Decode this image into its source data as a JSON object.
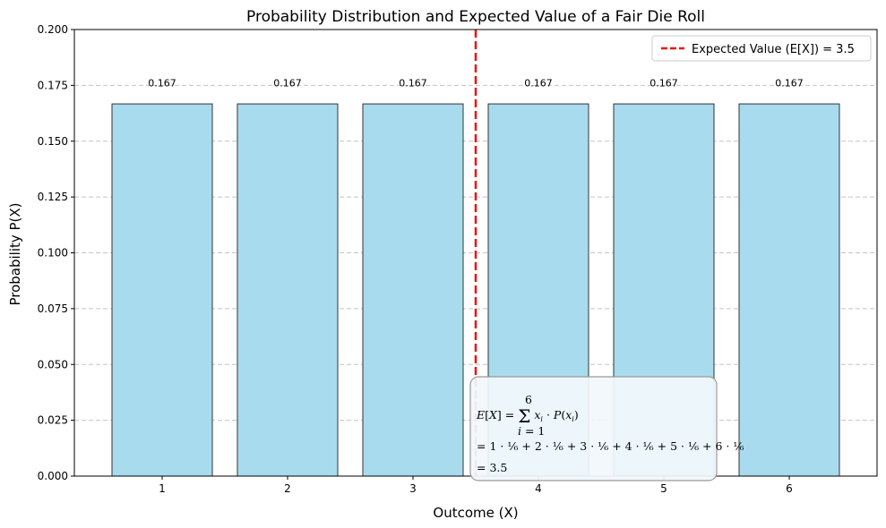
{
  "chart_data": {
    "type": "bar",
    "title": "Probability Distribution and Expected Value of a Fair Die Roll",
    "xlabel": "Outcome (X)",
    "ylabel": "Probability P(X)",
    "categories": [
      "1",
      "2",
      "3",
      "4",
      "5",
      "6"
    ],
    "values": [
      0.1667,
      0.1667,
      0.1667,
      0.1667,
      0.1667,
      0.1667
    ],
    "value_labels": [
      "0.167",
      "0.167",
      "0.167",
      "0.167",
      "0.167",
      "0.167"
    ],
    "xlim": [
      0.3,
      6.7
    ],
    "ylim": [
      0,
      0.2
    ],
    "yticks": [
      0.0,
      0.025,
      0.05,
      0.075,
      0.1,
      0.125,
      0.15,
      0.175,
      0.2
    ],
    "ytick_labels": [
      "0.000",
      "0.025",
      "0.050",
      "0.075",
      "0.100",
      "0.125",
      "0.150",
      "0.175",
      "0.200"
    ],
    "grid": "y, dashed",
    "bar_color": "#a8dbee",
    "bar_edge_color": "#333333",
    "expected_value": {
      "x": 3.5,
      "label": "Expected Value (E[X]) = 3.5",
      "color": "#ee1111",
      "style": "dashed"
    },
    "legend": {
      "placement": "top-right"
    },
    "annotation": {
      "line1": "E[X] = Σ x_i · P(x_i), i = 1 to 6",
      "line2": "= 1·1/6 + 2·1/6 + 3·1/6 + 4·1/6 + 5·1/6 + 6·1/6",
      "line3": "= 3.5"
    }
  }
}
